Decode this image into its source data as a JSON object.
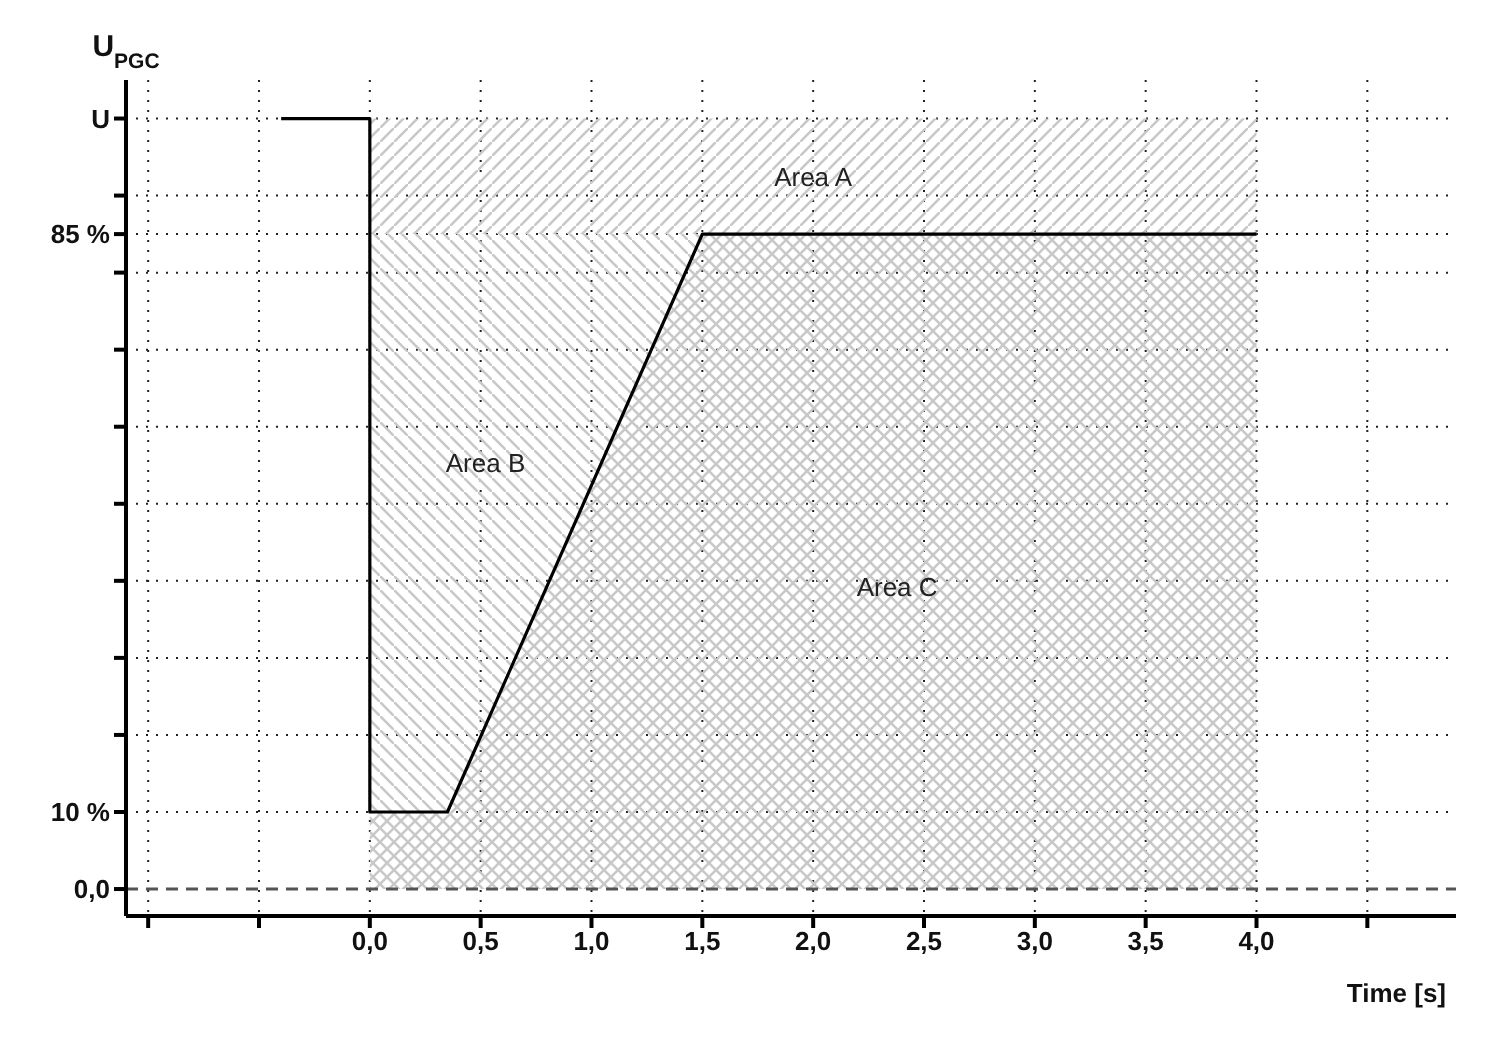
{
  "chart_data": {
    "type": "area",
    "stacked": true,
    "ylabel": "U$_{PGC}$",
    "xlabel": "Time [s]",
    "x": [
      0,
      0.35,
      1.5,
      4.0
    ],
    "series": [
      {
        "name": "Area C",
        "color": "#c8c8c8",
        "values": [
          10,
          10,
          85,
          85
        ]
      },
      {
        "name": "Area B",
        "color": "#c8c8c8",
        "values": [
          75,
          75,
          0,
          0
        ]
      },
      {
        "name": "Area A",
        "color": "#c8c8c8",
        "values": [
          15,
          15,
          15,
          15
        ]
      },
      {
        "type": "line",
        "color": "#000000",
        "x": [
          -0.4,
          0,
          0,
          0.35,
          1.5,
          4.0
        ],
        "values": [
          100,
          100,
          10,
          10,
          85,
          85
        ]
      }
    ],
    "xlim": [
      -1.1,
      4.9
    ],
    "ylim": [
      -3.5,
      105
    ],
    "xticks": [
      {
        "value": -1.0,
        "label": null
      },
      {
        "value": -0.5,
        "label": null
      },
      {
        "value": 0,
        "label": "0,0"
      },
      {
        "value": 0.5,
        "label": "0,5"
      },
      {
        "value": 1.0,
        "label": "1,0"
      },
      {
        "value": 1.5,
        "label": "1,5"
      },
      {
        "value": 2.0,
        "label": "2,0"
      },
      {
        "value": 2.5,
        "label": "2,5"
      },
      {
        "value": 3.0,
        "label": "3,0"
      },
      {
        "value": 3.5,
        "label": "3,5"
      },
      {
        "value": 4.0,
        "label": "4,0"
      },
      {
        "value": 4.5,
        "label": null
      }
    ],
    "yticks": [
      {
        "value": 0,
        "label": "0,0"
      },
      {
        "value": 10,
        "label": "10 %"
      },
      {
        "value": 20,
        "label": null
      },
      {
        "value": 30,
        "label": null
      },
      {
        "value": 40,
        "label": null
      },
      {
        "value": 50,
        "label": null
      },
      {
        "value": 60,
        "label": null
      },
      {
        "value": 70,
        "label": null
      },
      {
        "value": 80,
        "label": null
      },
      {
        "value": 85,
        "label": "85 %"
      },
      {
        "value": 90,
        "label": null
      },
      {
        "value": 100,
        "label": "U"
      }
    ],
    "ref_lines": [
      {
        "axis": "y",
        "value": 0,
        "color": "#555555",
        "line_style": "dashed"
      }
    ],
    "grid": true,
    "marker": "none",
    "line_style": "solid"
  }
}
